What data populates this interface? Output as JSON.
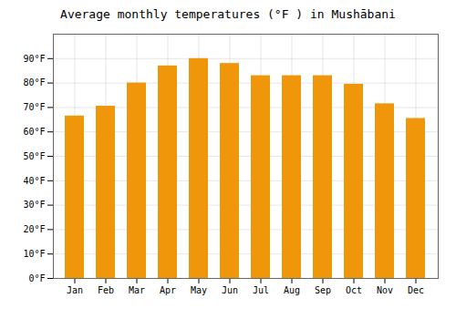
{
  "chart_data": {
    "type": "bar",
    "title": "Average monthly temperatures (°F ) in Mushābani",
    "categories": [
      "Jan",
      "Feb",
      "Mar",
      "Apr",
      "May",
      "Jun",
      "Jul",
      "Aug",
      "Sep",
      "Oct",
      "Nov",
      "Dec"
    ],
    "values": [
      66.5,
      70.5,
      80.0,
      87.0,
      90.0,
      88.0,
      83.0,
      83.0,
      83.0,
      79.5,
      71.5,
      65.5
    ],
    "color": "#F0960A",
    "ylim": [
      0,
      100
    ],
    "yticks": [
      {
        "value": 0,
        "label": "0°F"
      },
      {
        "value": 10,
        "label": "10°F"
      },
      {
        "value": 20,
        "label": "20°F"
      },
      {
        "value": 30,
        "label": "30°F"
      },
      {
        "value": 40,
        "label": "40°F"
      },
      {
        "value": 50,
        "label": "50°F"
      },
      {
        "value": 60,
        "label": "60°F"
      },
      {
        "value": 70,
        "label": "70°F"
      },
      {
        "value": 80,
        "label": "80°F"
      },
      {
        "value": 90,
        "label": "90°F"
      }
    ],
    "grid": true
  }
}
